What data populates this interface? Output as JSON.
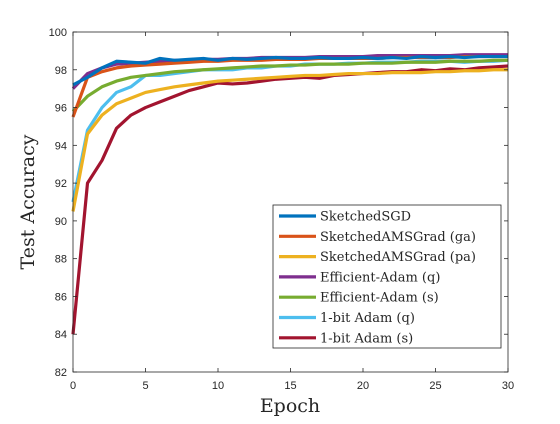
{
  "chart_data": {
    "type": "line",
    "title": "",
    "xlabel": "Epoch",
    "ylabel": "Test Accuracy",
    "xlim": [
      0,
      30
    ],
    "ylim": [
      82,
      100
    ],
    "xticks": [
      0,
      5,
      10,
      15,
      20,
      25,
      30
    ],
    "yticks": [
      82,
      84,
      86,
      88,
      90,
      92,
      94,
      96,
      98,
      100
    ],
    "grid": false,
    "legend_position": "lower-right",
    "x": [
      0,
      1,
      2,
      3,
      4,
      5,
      6,
      7,
      8,
      9,
      10,
      11,
      12,
      13,
      14,
      15,
      16,
      17,
      18,
      19,
      20,
      21,
      22,
      23,
      24,
      25,
      26,
      27,
      28,
      29,
      30
    ],
    "series": [
      {
        "name": "SketchedSGD",
        "color": "#0072BD",
        "values": [
          97.2,
          97.6,
          98.1,
          98.45,
          98.4,
          98.35,
          98.6,
          98.5,
          98.55,
          98.6,
          98.5,
          98.6,
          98.55,
          98.6,
          98.65,
          98.6,
          98.6,
          98.65,
          98.6,
          98.6,
          98.65,
          98.6,
          98.65,
          98.6,
          98.7,
          98.65,
          98.7,
          98.65,
          98.7,
          98.7,
          98.7
        ]
      },
      {
        "name": "SketchedAMSGrad (ga)",
        "color": "#D95319",
        "values": [
          95.5,
          97.6,
          97.9,
          98.1,
          98.2,
          98.25,
          98.3,
          98.35,
          98.4,
          98.45,
          98.45,
          98.5,
          98.5,
          98.5,
          98.55,
          98.55,
          98.55,
          98.6,
          98.6,
          98.6,
          98.6,
          98.6,
          98.65,
          98.65,
          98.65,
          98.65,
          98.65,
          98.7,
          98.7,
          98.7,
          98.7
        ]
      },
      {
        "name": "SketchedAMSGrad (pa)",
        "color": "#EDB120",
        "values": [
          90.5,
          94.6,
          95.6,
          96.2,
          96.5,
          96.8,
          96.95,
          97.1,
          97.2,
          97.3,
          97.4,
          97.45,
          97.5,
          97.55,
          97.6,
          97.65,
          97.7,
          97.7,
          97.75,
          97.8,
          97.8,
          97.8,
          97.85,
          97.85,
          97.85,
          97.9,
          97.9,
          97.95,
          97.95,
          98.0,
          98.0
        ]
      },
      {
        "name": "Efficient-Adam (q)",
        "color": "#7E2F8E",
        "values": [
          97.0,
          97.8,
          98.1,
          98.3,
          98.35,
          98.4,
          98.45,
          98.5,
          98.5,
          98.55,
          98.55,
          98.6,
          98.6,
          98.65,
          98.65,
          98.65,
          98.65,
          98.7,
          98.7,
          98.7,
          98.7,
          98.75,
          98.75,
          98.75,
          98.75,
          98.75,
          98.75,
          98.8,
          98.8,
          98.8,
          98.8
        ]
      },
      {
        "name": "Efficient-Adam (s)",
        "color": "#77AC30",
        "values": [
          95.8,
          96.6,
          97.1,
          97.4,
          97.6,
          97.7,
          97.8,
          97.9,
          97.95,
          98.0,
          98.05,
          98.1,
          98.15,
          98.2,
          98.2,
          98.25,
          98.25,
          98.3,
          98.3,
          98.3,
          98.35,
          98.35,
          98.35,
          98.4,
          98.4,
          98.4,
          98.45,
          98.45,
          98.45,
          98.5,
          98.5
        ]
      },
      {
        "name": "1-bit Adam (q)",
        "color": "#4DBEEE",
        "values": [
          91.0,
          94.8,
          96.0,
          96.8,
          97.1,
          97.7,
          97.7,
          97.8,
          97.9,
          98.0,
          98.0,
          98.0,
          98.1,
          98.1,
          98.2,
          98.2,
          98.3,
          98.3,
          98.3,
          98.35,
          98.35,
          98.4,
          98.4,
          98.4,
          98.45,
          98.45,
          98.45,
          98.4,
          98.45,
          98.45,
          98.5
        ]
      },
      {
        "name": "1-bit Adam (s)",
        "color": "#A2142F",
        "values": [
          84.0,
          92.0,
          93.2,
          94.9,
          95.6,
          96.0,
          96.3,
          96.6,
          96.9,
          97.1,
          97.3,
          97.25,
          97.3,
          97.4,
          97.5,
          97.55,
          97.6,
          97.55,
          97.7,
          97.75,
          97.8,
          97.85,
          97.9,
          97.9,
          98.0,
          97.95,
          98.05,
          98.0,
          98.1,
          98.15,
          98.2
        ]
      }
    ]
  }
}
